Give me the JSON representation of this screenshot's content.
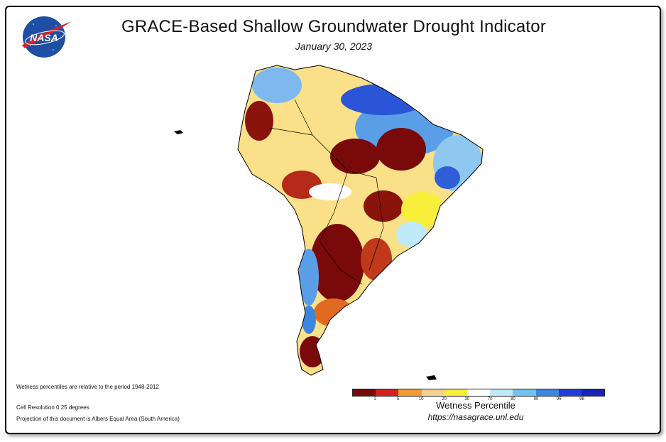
{
  "header": {
    "title": "GRACE-Based Shallow Groundwater Drought Indicator",
    "date": "January 30, 2023"
  },
  "logo": {
    "text": "NASA",
    "color": "#1f4fa3",
    "accent": "#d3232a"
  },
  "notes": {
    "period": "Wetness percentiles are relative to the period 1948-2012",
    "resolution": "Cell Resolution 0.25 degrees",
    "projection": "Projection of this document is Albers Equal Area (South America)"
  },
  "legend": {
    "label": "Wetness Percentile",
    "url": "https://nasagrace.unl.edu",
    "colors": [
      "#7a0a0a",
      "#d4201e",
      "#f39a33",
      "#f8d08e",
      "#f7ef3a",
      "#ffffff",
      "#bfeafa",
      "#73c3f0",
      "#3d86e0",
      "#1f3fd8",
      "#1a23b8"
    ],
    "ticks": [
      "2",
      "5",
      "10",
      "20",
      "30",
      "70",
      "80",
      "90",
      "95",
      "98"
    ]
  }
}
